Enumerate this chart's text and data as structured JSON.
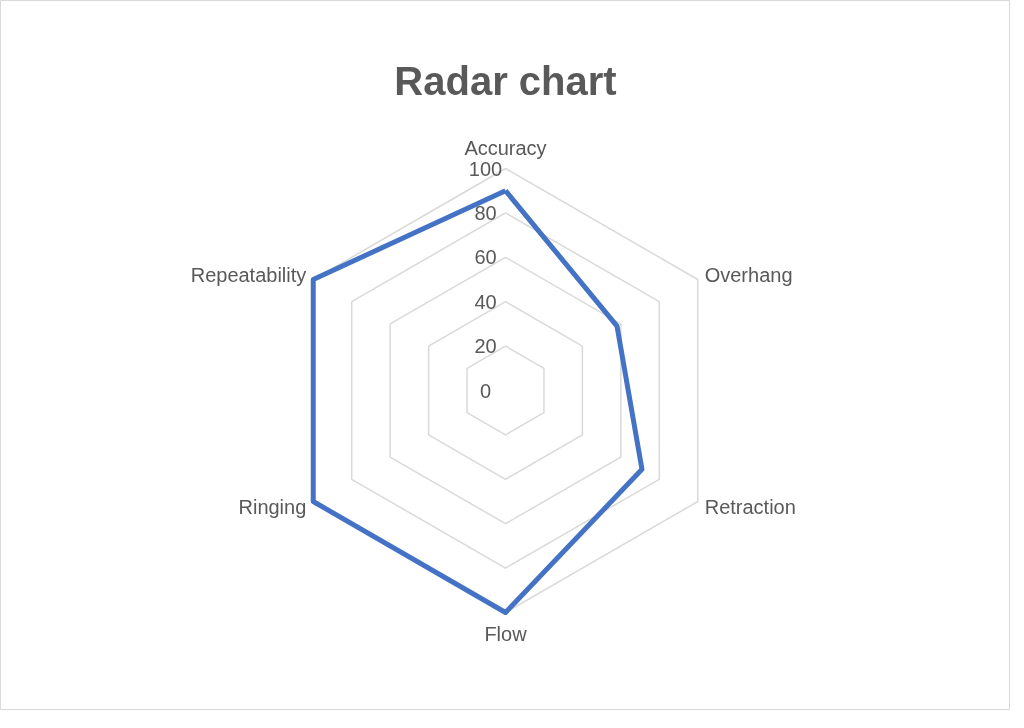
{
  "chart_data": {
    "type": "radar",
    "title": "Radar chart",
    "categories": [
      "Accuracy",
      "Overhang",
      "Retraction",
      "Flow",
      "Ringing",
      "Repeatability"
    ],
    "series": [
      {
        "color": "#4472c4",
        "values": [
          90,
          58,
          71,
          100,
          100,
          100
        ]
      }
    ],
    "ylim": [
      0,
      100
    ],
    "yticks": [
      0,
      20,
      40,
      60,
      80,
      100
    ],
    "grid": true
  }
}
